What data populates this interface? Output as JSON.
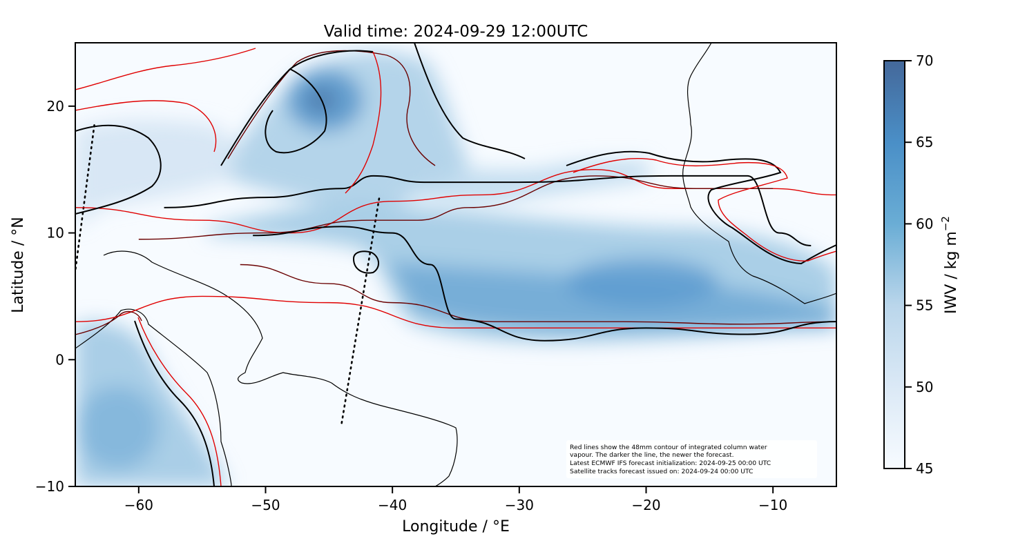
{
  "title": "Valid time: 2024-09-29 12:00UTC",
  "xaxis": {
    "label": "Longitude / °E",
    "range": [
      -65,
      -5
    ],
    "ticks": [
      -60,
      -50,
      -40,
      -30,
      -20,
      -10
    ],
    "tick_labels": [
      "−60",
      "−50",
      "−40",
      "−30",
      "−20",
      "−10"
    ]
  },
  "yaxis": {
    "label": "Latitude / °N",
    "range": [
      -10,
      25
    ],
    "ticks": [
      -10,
      0,
      10,
      20
    ],
    "tick_labels": [
      "−10",
      "0",
      "10",
      "20"
    ]
  },
  "colorbar": {
    "label": "IWV / kg m",
    "label_sup": "−2",
    "range": [
      45,
      70
    ],
    "ticks": [
      45,
      50,
      55,
      60,
      65,
      70
    ],
    "tick_labels": [
      "45",
      "50",
      "55",
      "60",
      "65",
      "70"
    ],
    "colors": [
      "#f7fbff",
      "#c6dbef",
      "#6baed6",
      "#4292c6",
      "#2171b5",
      "#44689a"
    ]
  },
  "annotation": [
    "Red lines show the 48mm contour of integrated column water",
    "vapour. The darker the line, the newer the forecast.",
    "Latest ECMWF IFS forecast initialization: 2024-09-25 00:00 UTC",
    "Satellite tracks forecast issued on: 2024-09-24 00:00 UTC"
  ],
  "colors": {
    "contour_oldest": "#e00000",
    "contour_mid": "#6a0000",
    "contour_newest": "#000000"
  },
  "chart_data": {
    "type": "heatmap",
    "title": "Valid time: 2024-09-29 12:00UTC",
    "xlabel": "Longitude / °E",
    "ylabel": "Latitude / °N",
    "xlim": [
      -65,
      -5
    ],
    "ylim": [
      -10,
      25
    ],
    "colorbar_range": [
      45,
      70
    ],
    "iwv_maxima": [
      {
        "lon": -45.5,
        "lat": 20.5,
        "iwv": 68
      },
      {
        "lon": -20,
        "lat": 6,
        "iwv": 62
      },
      {
        "lon": -60,
        "lat": -6,
        "iwv": 58
      }
    ],
    "contours": [
      {
        "color": "#e00000",
        "points": [
          [
            -65,
            3
          ],
          [
            -55,
            5
          ],
          [
            -45,
            4.5
          ],
          [
            -35,
            2.5
          ],
          [
            -25,
            2.5
          ],
          [
            -15,
            2.5
          ],
          [
            -5,
            2.5
          ]
        ]
      },
      {
        "color": "#e00000",
        "points": [
          [
            -65,
            12
          ],
          [
            -55,
            11
          ],
          [
            -48,
            10
          ],
          [
            -40,
            12.5
          ],
          [
            -33,
            13
          ],
          [
            -24,
            15
          ],
          [
            -18,
            13.5
          ],
          [
            -10,
            13.5
          ],
          [
            -5,
            13
          ]
        ]
      },
      {
        "color": "#6a0000",
        "points": [
          [
            -60,
            9.5
          ],
          [
            -50,
            10
          ],
          [
            -42,
            11
          ],
          [
            -38,
            11
          ],
          [
            -34,
            12
          ],
          [
            -24,
            14.5
          ],
          [
            -16,
            13.5
          ],
          [
            -10,
            13.5
          ]
        ]
      },
      {
        "color": "#6a0000",
        "points": [
          [
            -52,
            7.5
          ],
          [
            -45,
            6
          ],
          [
            -40,
            4.5
          ],
          [
            -32,
            3
          ],
          [
            -22,
            3
          ],
          [
            -12,
            2.8
          ],
          [
            -5,
            3
          ]
        ]
      },
      {
        "color": "#000000",
        "points": [
          [
            -51,
            9.8
          ],
          [
            -44,
            10.5
          ],
          [
            -40,
            10
          ],
          [
            -37,
            7.5
          ],
          [
            -35,
            3.2
          ],
          [
            -28,
            1.5
          ],
          [
            -20,
            2.5
          ],
          [
            -12,
            2
          ],
          [
            -5,
            3
          ]
        ]
      },
      {
        "color": "#000000",
        "points": [
          [
            -58,
            12
          ],
          [
            -50,
            12.8
          ],
          [
            -44,
            13.5
          ],
          [
            -41.5,
            14.5
          ],
          [
            -37.5,
            14
          ],
          [
            -30,
            14
          ],
          [
            -18,
            14.5
          ],
          [
            -12,
            14.5
          ],
          [
            -9.5,
            10
          ],
          [
            -7,
            9
          ]
        ]
      }
    ],
    "satellite_tracks": [
      {
        "points": [
          [
            -63.5,
            18.5
          ],
          [
            -65,
            7
          ]
        ]
      },
      {
        "points": [
          [
            -44,
            -5
          ],
          [
            -41,
            13
          ]
        ]
      }
    ]
  }
}
